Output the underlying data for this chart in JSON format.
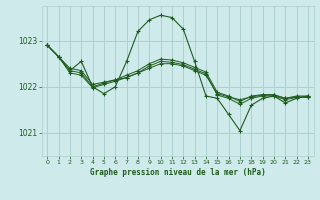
{
  "title": "Graphe pression niveau de la mer (hPa)",
  "background_color": "#ceeaea",
  "grid_color": "#aed0d0",
  "line_color": "#1e5c1e",
  "yticks": [
    1021,
    1022,
    1023
  ],
  "xticks": [
    0,
    1,
    2,
    3,
    4,
    5,
    6,
    7,
    8,
    9,
    10,
    11,
    12,
    13,
    14,
    15,
    16,
    17,
    18,
    19,
    20,
    21,
    22,
    23
  ],
  "xlim": [
    -0.5,
    23.5
  ],
  "ylim": [
    1020.5,
    1023.75
  ],
  "main_series": [
    1022.9,
    1022.65,
    1022.35,
    1022.55,
    1022.0,
    1021.85,
    1022.0,
    1022.55,
    1023.2,
    1023.45,
    1023.55,
    1023.5,
    1023.25,
    1022.55,
    1021.8,
    1021.75,
    1021.4,
    1021.05,
    1021.6,
    1021.75,
    1021.8,
    1021.65,
    1021.75,
    1021.8
  ],
  "trend1": [
    1022.9,
    1022.65,
    1022.4,
    1022.35,
    1022.05,
    1022.1,
    1022.15,
    1022.2,
    1022.3,
    1022.4,
    1022.5,
    1022.5,
    1022.45,
    1022.35,
    1022.25,
    1021.85,
    1021.78,
    1021.72,
    1021.78,
    1021.82,
    1021.82,
    1021.75,
    1021.78,
    1021.78
  ],
  "trend2": [
    1022.9,
    1022.65,
    1022.35,
    1022.3,
    1022.0,
    1022.08,
    1022.15,
    1022.25,
    1022.35,
    1022.5,
    1022.6,
    1022.58,
    1022.52,
    1022.42,
    1022.32,
    1021.88,
    1021.8,
    1021.68,
    1021.8,
    1021.83,
    1021.83,
    1021.75,
    1021.8,
    1021.8
  ],
  "trend3": [
    1022.9,
    1022.65,
    1022.3,
    1022.25,
    1021.98,
    1022.05,
    1022.12,
    1022.2,
    1022.3,
    1022.45,
    1022.55,
    1022.53,
    1022.48,
    1022.38,
    1022.28,
    1021.82,
    1021.75,
    1021.62,
    1021.75,
    1021.8,
    1021.8,
    1021.72,
    1021.77,
    1021.77
  ]
}
